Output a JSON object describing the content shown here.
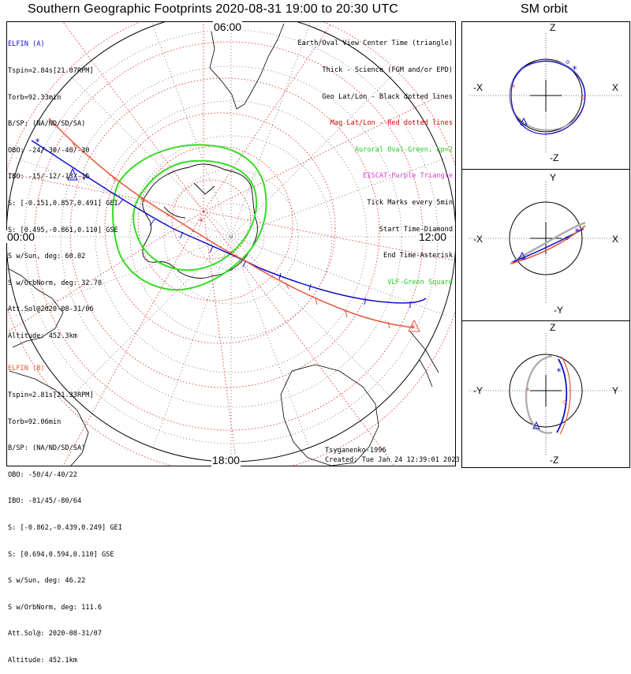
{
  "title": "Southern Geographic Footprints 2020-08-31 19:00 to 20:30 UTC",
  "orbit_title": "SM orbit",
  "hour_labels": {
    "top": "06:00",
    "left": "00:00",
    "right": "12:00",
    "bottom": "18:00"
  },
  "elfin_a": {
    "name": "ELFIN (A)",
    "lines": [
      "Tspin=2.84s[21.07RPM]",
      "Torb=92.33min",
      "B/SP: (NA/ND/SD/SA)",
      "OBO: -24/-30/-40/-30",
      "IBO: -15/-12/-13/-16",
      "S: [-0.151,0.857,0.491] GEI",
      "S: [0.495,-0.861,0.110] GSE",
      "S w/Sun, deg: 60.02",
      "S w/OrbNorm, deg: 32.70",
      "Att.Sol@2020-08-31/06",
      "Altitude: 452.3km"
    ],
    "color": "#1010d0"
  },
  "elfin_b": {
    "name": "ELFIN (B)",
    "lines": [
      "Tspin=2.81s[21.33RPM]",
      "Torb=92.06min",
      "B/SP: (NA/ND/SD/SA)",
      "OBO: -50/4/-40/22",
      "IBO: -81/45/-80/64",
      "S: [-0.862,-0.439,0.249] GEI",
      "S: [0.694,0.594,0.110] GSE",
      "S w/Sun, deg: 46.22",
      "S w/OrbNorm, deg: 111.6",
      "Att.Sol@: 2020-08-31/07",
      "Altitude: 452.1km"
    ],
    "color": "#e8553a"
  },
  "legend": [
    {
      "text": "Earth/Oval View Center Time (triangle)",
      "color": "#000000"
    },
    {
      "text": "Thick - Science (FGM and/or EPD)",
      "color": "#000000"
    },
    {
      "text": "Geo Lat/Lon - Black dotted lines",
      "color": "#000000"
    },
    {
      "text": "Mag Lat/Lon - Red dotted lines",
      "color": "#dd0000"
    },
    {
      "text": "Auroral Oval-Green, kp=2",
      "color": "#22cc22"
    },
    {
      "text": "EISCAT-Purple Triangle",
      "color": "#cc44cc"
    },
    {
      "text": "Tick Marks every 5min",
      "color": "#000000"
    },
    {
      "text": "Start Time-Diamond",
      "color": "#000000"
    },
    {
      "text": "End Time-Asterisk",
      "color": "#000000"
    },
    {
      "text": "VLF-Green Square",
      "color": "#22cc22"
    }
  ],
  "credit": "Tsyganenko-1996",
  "created": "Created: Tue Jan 24 12:39:01 2023",
  "panels": [
    {
      "top": "Z",
      "bottom": "-Z",
      "left": "-X",
      "right": "X"
    },
    {
      "top": "Y",
      "bottom": "-Y",
      "left": "-X",
      "right": "X"
    },
    {
      "top": "Z",
      "bottom": "-Z",
      "left": "-Y",
      "right": "Y"
    }
  ]
}
